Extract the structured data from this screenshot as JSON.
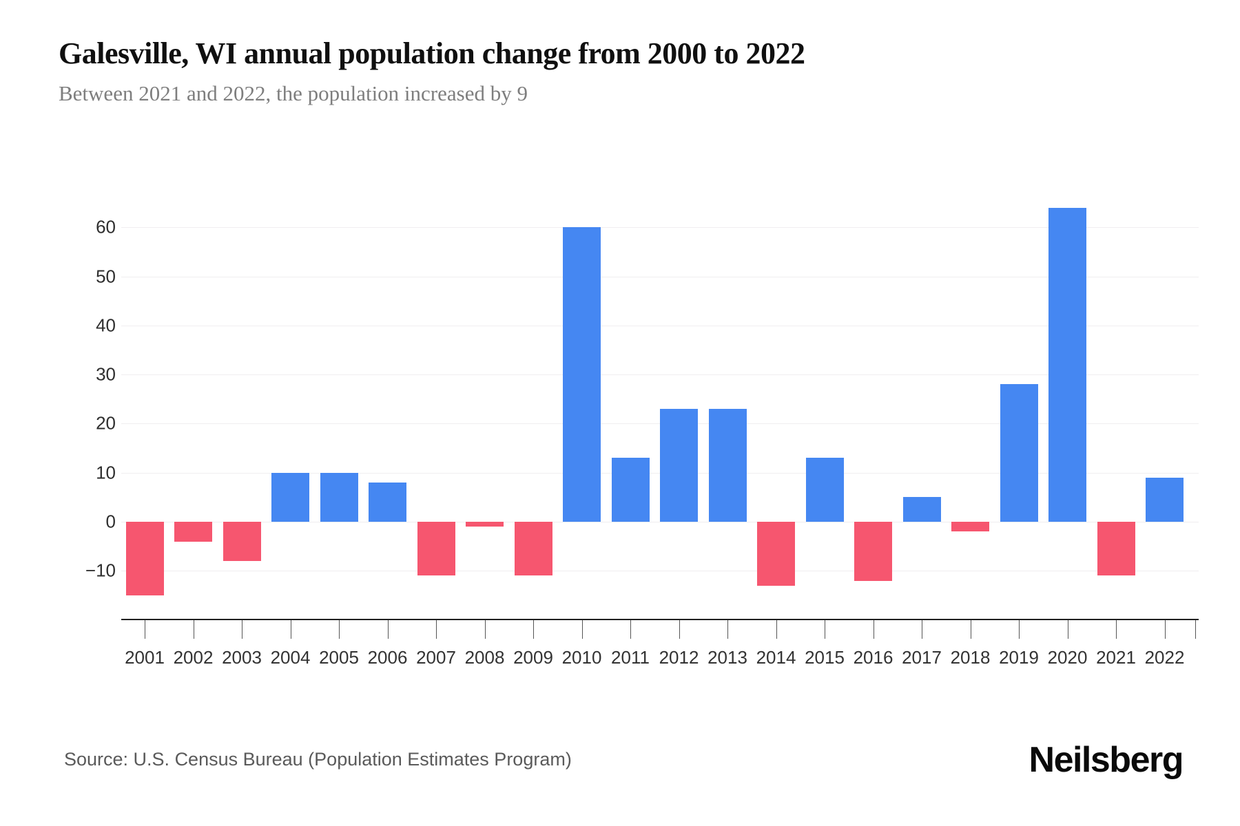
{
  "header": {
    "title": "Galesville, WI annual population change from 2000 to 2022",
    "subtitle": "Between 2021 and 2022, the population increased by 9"
  },
  "chart_data": {
    "type": "bar",
    "title": "Galesville, WI annual population change from 2000 to 2022",
    "subtitle": "Between 2021 and 2022, the population increased by 9",
    "categories": [
      "2001",
      "2002",
      "2003",
      "2004",
      "2005",
      "2006",
      "2007",
      "2008",
      "2009",
      "2010",
      "2011",
      "2012",
      "2013",
      "2014",
      "2015",
      "2016",
      "2017",
      "2018",
      "2019",
      "2020",
      "2021",
      "2022"
    ],
    "values": [
      -15,
      -4,
      -8,
      10,
      10,
      8,
      -11,
      -1,
      -11,
      60,
      13,
      23,
      23,
      -13,
      13,
      -12,
      5,
      -2,
      28,
      64,
      -11,
      9
    ],
    "xlabel": "",
    "ylabel": "",
    "yticks": [
      60,
      50,
      40,
      30,
      20,
      10,
      0,
      -10
    ],
    "ylim": [
      -20,
      70
    ],
    "grid": true,
    "legend": false,
    "positive_color": "#4587F2",
    "negative_color": "#F6566F"
  },
  "footer": {
    "source": "Source: U.S. Census Bureau (Population Estimates Program)",
    "brand": "Neilsberg"
  }
}
